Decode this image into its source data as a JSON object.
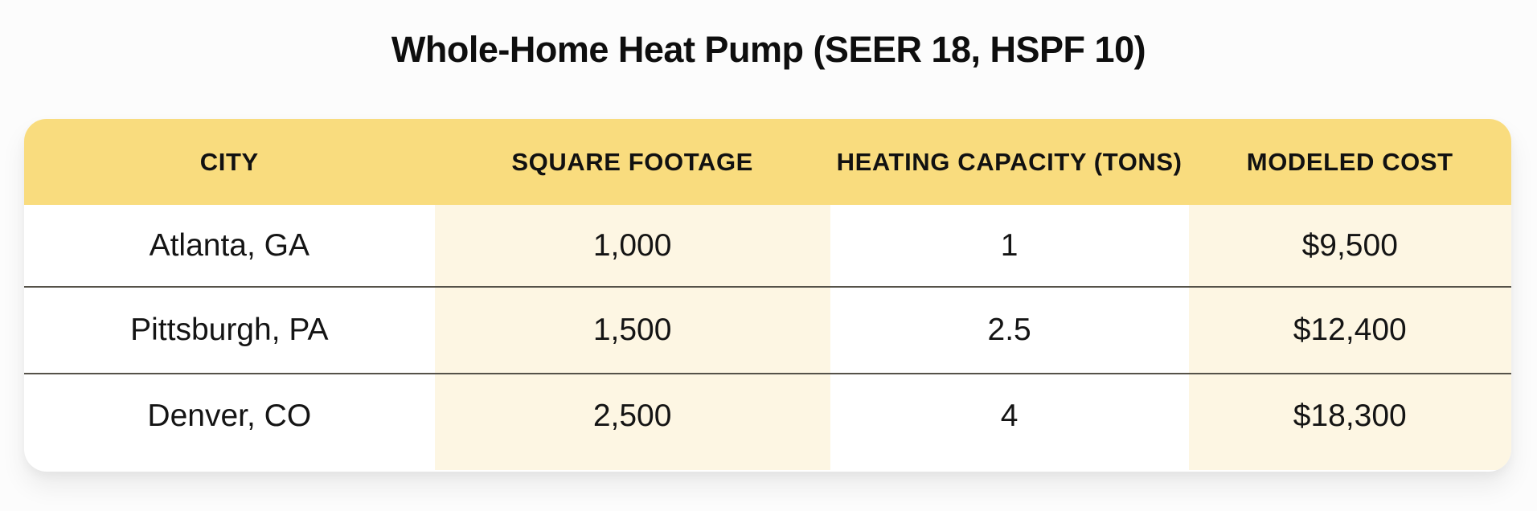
{
  "title": "Whole-Home Heat Pump (SEER 18, HSPF 10)",
  "table": {
    "columns": [
      "CITY",
      "SQUARE FOOTAGE",
      "HEATING CAPACITY (TONS)",
      "MODELED COST"
    ],
    "rows": [
      [
        "Atlanta, GA",
        "1,000",
        "1",
        "$9,500"
      ],
      [
        "Pittsburgh, PA",
        "1,500",
        "2.5",
        "$12,400"
      ],
      [
        "Denver, CO",
        "2,500",
        "4",
        "$18,300"
      ]
    ]
  },
  "colors": {
    "header_bg": "#F9DC7E",
    "tinted_column_bg": "#FDF6E3",
    "row_divider": "#555249",
    "card_bg": "#FFFFFF",
    "page_bg": "#FCFCFC",
    "text": "#141414"
  },
  "chart_data": {
    "type": "table",
    "title": "Whole-Home Heat Pump (SEER 18, HSPF 10)",
    "columns": [
      "CITY",
      "SQUARE FOOTAGE",
      "HEATING CAPACITY (TONS)",
      "MODELED COST"
    ],
    "rows": [
      [
        "Atlanta, GA",
        "1,000",
        "1",
        "$9,500"
      ],
      [
        "Pittsburgh, PA",
        "1,500",
        "2.5",
        "$12,400"
      ],
      [
        "Denver, CO",
        "2,500",
        "4",
        "$18,300"
      ]
    ],
    "numeric": {
      "cities": [
        "Atlanta, GA",
        "Pittsburgh, PA",
        "Denver, CO"
      ],
      "square_footage": [
        1000,
        1500,
        2500
      ],
      "heating_capacity_tons": [
        1,
        2.5,
        4
      ],
      "modeled_cost_usd": [
        9500,
        12400,
        18300
      ]
    },
    "layout_hints": {
      "tinted_columns": [
        "SQUARE FOOTAGE",
        "MODELED COST"
      ],
      "header_style": "yellow band, bold uppercase",
      "grid": "horizontal dividers between body rows only"
    }
  }
}
